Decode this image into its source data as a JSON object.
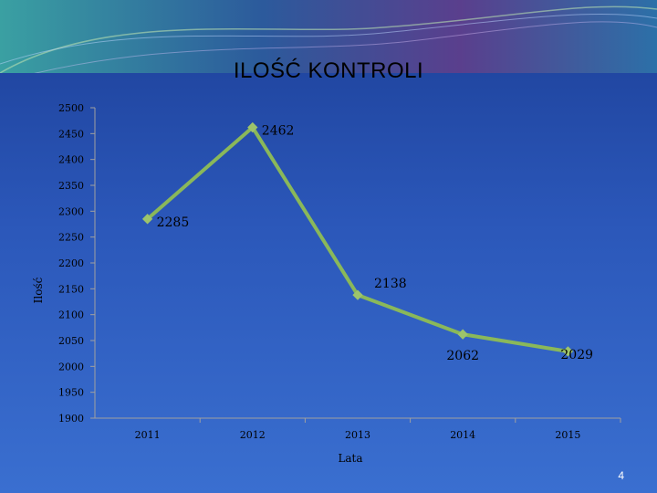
{
  "slide": {
    "page_number": "4"
  },
  "chart_data": {
    "type": "line",
    "title": "ILOŚĆ KONTROLI",
    "xlabel": "Lata",
    "ylabel": "Ilość",
    "categories": [
      "2011",
      "2012",
      "2013",
      "2014",
      "2015"
    ],
    "series": [
      {
        "values": [
          2285,
          2462,
          2138,
          2062,
          2029
        ]
      }
    ],
    "data_labels": [
      "2285",
      "2462",
      "2138",
      "2062",
      "2029"
    ],
    "yticks": [
      "2500",
      "2450",
      "2400",
      "2350",
      "2300",
      "2250",
      "2200",
      "2150",
      "2100",
      "2050",
      "2000",
      "1950",
      "1900"
    ],
    "ylim": [
      1900,
      2500
    ],
    "grid": false,
    "colors": {
      "line": "#8ab85a",
      "marker": "#9dc46b",
      "axis": "#a0a0a0"
    }
  }
}
